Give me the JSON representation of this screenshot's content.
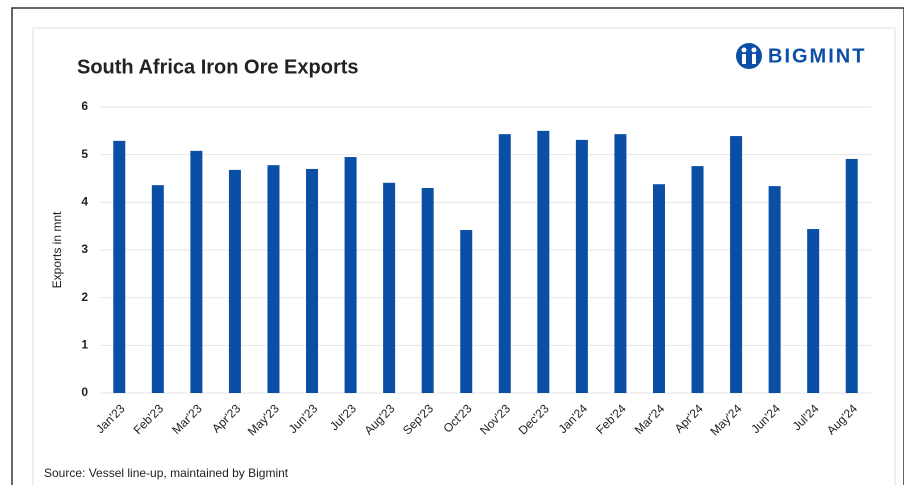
{
  "chart_data": {
    "type": "bar",
    "title": "South Africa Iron Ore Exports",
    "brand": "BIGMINT",
    "y_label": "Exports in mnt",
    "source": "Source: Vessel line-up, maintained by Bigmint",
    "categories": [
      "Jan'23",
      "Feb'23",
      "Mar'23",
      "Apr'23",
      "May'23",
      "Jun'23",
      "Jul'23",
      "Aug'23",
      "Sep'23",
      "Oct'23",
      "Nov'23",
      "Dec'23",
      "Jan'24",
      "Feb'24",
      "Mar'24",
      "Apr'24",
      "May'24",
      "Jun'24",
      "Jul'24",
      "Aug'24"
    ],
    "values": [
      5.29,
      4.36,
      5.08,
      4.68,
      4.78,
      4.7,
      4.95,
      4.41,
      4.3,
      3.42,
      5.43,
      5.5,
      5.31,
      5.43,
      4.38,
      4.76,
      5.39,
      4.34,
      3.44,
      4.91
    ],
    "color": "#0a4ea6",
    "ylim": [
      0,
      6
    ],
    "yticks": [
      0,
      1,
      2,
      3,
      4,
      5,
      6
    ],
    "grid": true
  }
}
